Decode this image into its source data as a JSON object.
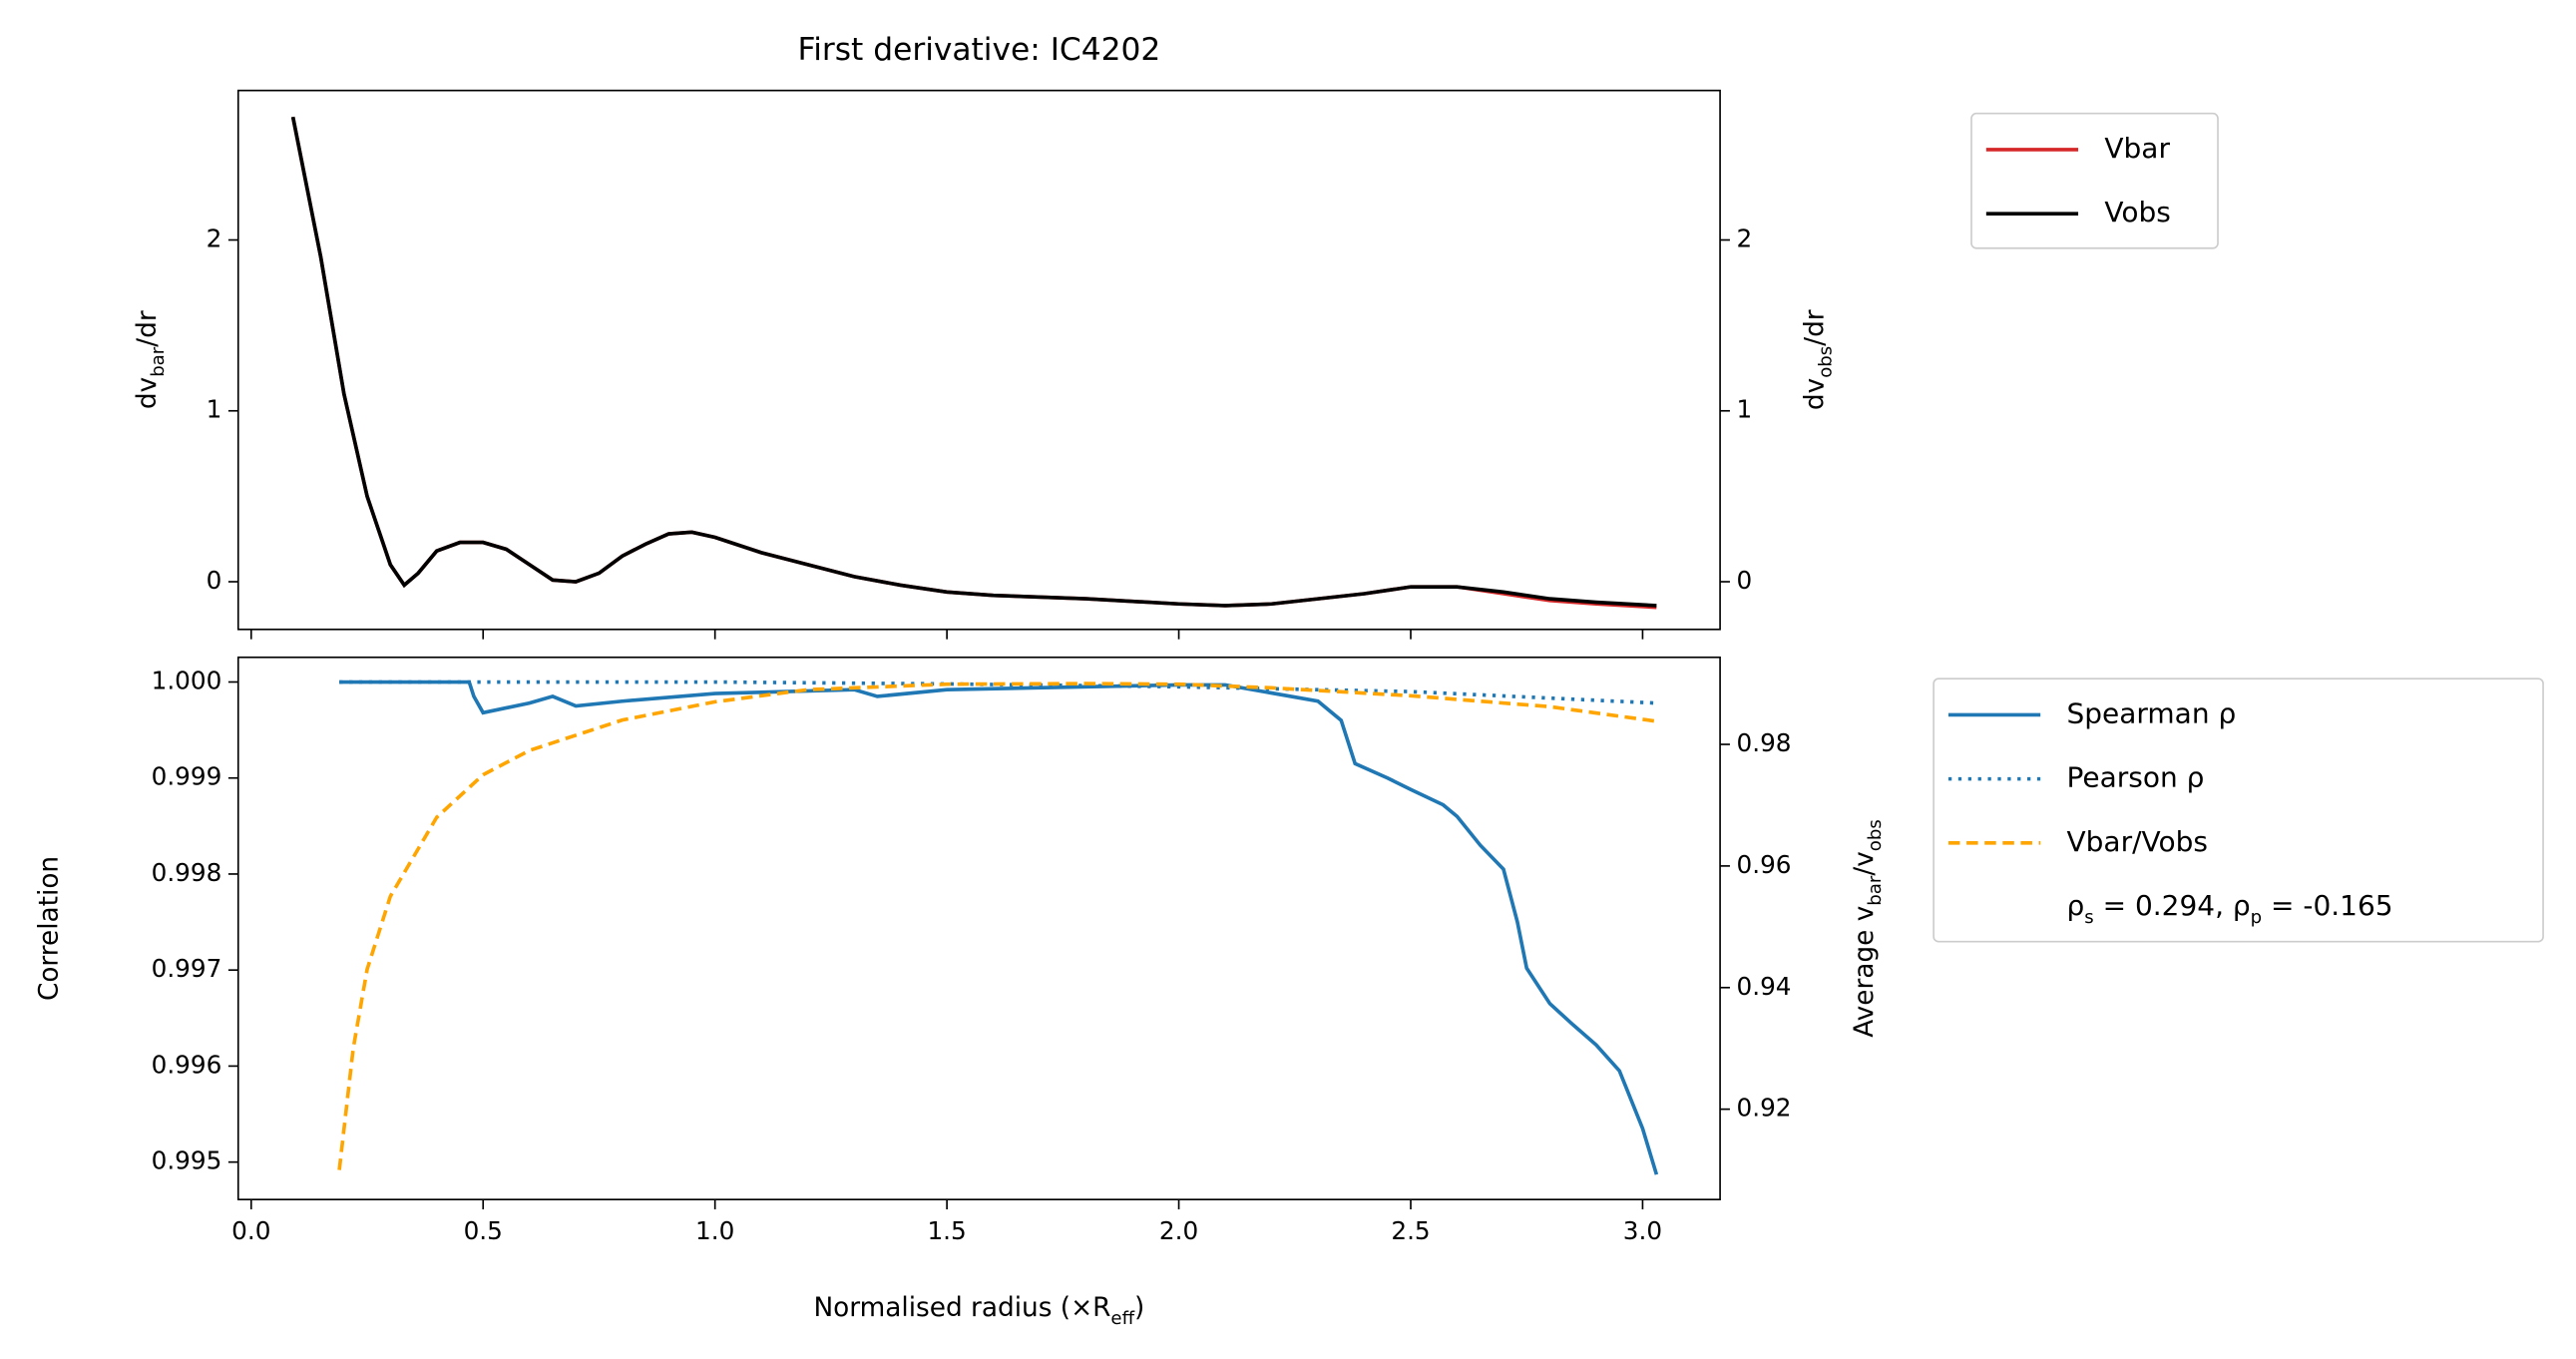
{
  "chart_data": [
    {
      "type": "line",
      "title": "First derivative: IC4202",
      "ylabel": [
        "dv",
        "bar",
        "/dr"
      ],
      "y2label": [
        "dv",
        "obs",
        "/dr"
      ],
      "ylabel_color": "#d62728",
      "xlim": [
        -0.028,
        3.167
      ],
      "xticks": [
        0,
        0.5,
        1,
        1.5,
        2,
        2.5,
        3
      ],
      "xticklabels": false,
      "ylim": [
        -0.279,
        2.875
      ],
      "yticks": [
        0,
        1,
        2
      ],
      "ytick_color": "#d62728",
      "y2lim": [
        -0.279,
        2.875
      ],
      "y2ticks": [
        0,
        1,
        2
      ],
      "y2tick_color": "#000000",
      "legend": "outside upper right",
      "series": [
        {
          "name": "Vbar",
          "color": "#d62728",
          "dash": "solid",
          "x": [
            0.09,
            0.15,
            0.2,
            0.25,
            0.3,
            0.33,
            0.36,
            0.4,
            0.45,
            0.5,
            0.55,
            0.6,
            0.65,
            0.7,
            0.75,
            0.8,
            0.85,
            0.9,
            0.95,
            1.0,
            1.1,
            1.2,
            1.3,
            1.4,
            1.5,
            1.6,
            1.8,
            2.0,
            2.1,
            2.2,
            2.3,
            2.4,
            2.5,
            2.6,
            2.7,
            2.8,
            2.9,
            3.03
          ],
          "values": [
            2.72,
            1.9,
            1.1,
            0.5,
            0.1,
            -0.02,
            0.05,
            0.18,
            0.23,
            0.23,
            0.19,
            0.1,
            0.01,
            0.0,
            0.05,
            0.15,
            0.22,
            0.28,
            0.29,
            0.26,
            0.17,
            0.1,
            0.03,
            -0.02,
            -0.06,
            -0.08,
            -0.1,
            -0.13,
            -0.14,
            -0.13,
            -0.1,
            -0.07,
            -0.03,
            -0.03,
            -0.07,
            -0.11,
            -0.13,
            -0.15
          ]
        },
        {
          "name": "Vobs",
          "color": "#000000",
          "dash": "solid",
          "axis": "y2",
          "x": [
            0.09,
            0.15,
            0.2,
            0.25,
            0.3,
            0.33,
            0.36,
            0.4,
            0.45,
            0.5,
            0.55,
            0.6,
            0.65,
            0.7,
            0.75,
            0.8,
            0.85,
            0.9,
            0.95,
            1.0,
            1.1,
            1.2,
            1.3,
            1.4,
            1.5,
            1.6,
            1.8,
            2.0,
            2.1,
            2.2,
            2.3,
            2.4,
            2.5,
            2.6,
            2.7,
            2.8,
            2.9,
            3.03
          ],
          "values": [
            2.72,
            1.9,
            1.1,
            0.5,
            0.1,
            -0.02,
            0.05,
            0.18,
            0.23,
            0.23,
            0.19,
            0.1,
            0.01,
            0.0,
            0.05,
            0.15,
            0.22,
            0.28,
            0.29,
            0.26,
            0.17,
            0.1,
            0.03,
            -0.02,
            -0.06,
            -0.08,
            -0.1,
            -0.13,
            -0.14,
            -0.13,
            -0.1,
            -0.07,
            -0.03,
            -0.03,
            -0.06,
            -0.1,
            -0.12,
            -0.14
          ]
        }
      ]
    },
    {
      "type": "line",
      "xlabel": [
        "Normalised radius (×R",
        "eff",
        ")"
      ],
      "ylabel": [
        "Correlation"
      ],
      "y2label": [
        "Average v",
        "bar",
        "/v",
        "obs"
      ],
      "ylabel_color": "#000000",
      "xlim": [
        -0.028,
        3.167
      ],
      "xticks": [
        {
          "value": 0,
          "label": "0.0"
        },
        0.5,
        {
          "value": 1,
          "label": "1.0"
        },
        1.5,
        {
          "value": 2,
          "label": "2.0"
        },
        2.5,
        {
          "value": 3,
          "label": "3.0"
        }
      ],
      "xticklabels": true,
      "ylim": [
        0.99461,
        1.000257
      ],
      "yticks": [
        {
          "value": 0.995,
          "label": "0.995"
        },
        {
          "value": 0.996,
          "label": "0.996"
        },
        {
          "value": 0.997,
          "label": "0.997"
        },
        {
          "value": 0.998,
          "label": "0.998"
        },
        {
          "value": 0.999,
          "label": "0.999"
        },
        {
          "value": 1,
          "label": "1.000"
        }
      ],
      "ytick_color": "#1f77b4",
      "y2lim": [
        0.90514,
        0.99432
      ],
      "y2ticks": [
        0.92,
        0.94,
        0.96,
        0.98
      ],
      "y2tick_color": "#ffa500",
      "legend": "outside upper right",
      "annotation": [
        "ρ",
        "s",
        " = 0.294, ρ",
        "p",
        " = -0.165"
      ],
      "series": [
        {
          "name": "Spearman ρ",
          "color": "#1f77b4",
          "dash": "solid",
          "x": [
            0.19,
            0.47,
            0.48,
            0.5,
            0.6,
            0.65,
            0.7,
            0.8,
            1.0,
            1.3,
            1.35,
            1.5,
            2.0,
            2.1,
            2.3,
            2.35,
            2.38,
            2.45,
            2.5,
            2.57,
            2.6,
            2.65,
            2.7,
            2.73,
            2.75,
            2.8,
            2.85,
            2.9,
            2.95,
            3.0,
            3.03
          ],
          "values": [
            1.0,
            1.0,
            0.99985,
            0.99968,
            0.99978,
            0.99985,
            0.99975,
            0.9998,
            0.99988,
            0.99992,
            0.99985,
            0.99992,
            0.99997,
            0.99997,
            0.9998,
            0.9996,
            0.99915,
            0.999,
            0.99888,
            0.99872,
            0.9986,
            0.9983,
            0.99805,
            0.9975,
            0.99702,
            0.99665,
            0.99643,
            0.99622,
            0.99595,
            0.99535,
            0.99487
          ]
        },
        {
          "name": "Pearson ρ",
          "color": "#1f77b4",
          "dash": "dotted",
          "x": [
            0.19,
            1.0,
            1.5,
            2.0,
            2.5,
            3.03
          ],
          "values": [
            1.0,
            1.0,
            0.99998,
            0.99995,
            0.9999,
            0.99978
          ]
        },
        {
          "name": "Vbar/Vobs",
          "color": "#ffa500",
          "dash": "dashed",
          "axis": "y2",
          "x": [
            0.19,
            0.22,
            0.25,
            0.3,
            0.4,
            0.5,
            0.6,
            0.8,
            1.0,
            1.2,
            1.5,
            1.8,
            2.0,
            2.2,
            2.5,
            2.8,
            3.03
          ],
          "values": [
            0.91,
            0.93,
            0.943,
            0.955,
            0.968,
            0.975,
            0.979,
            0.984,
            0.987,
            0.989,
            0.9899,
            0.99,
            0.9899,
            0.9893,
            0.988,
            0.9862,
            0.9838
          ]
        }
      ]
    }
  ]
}
